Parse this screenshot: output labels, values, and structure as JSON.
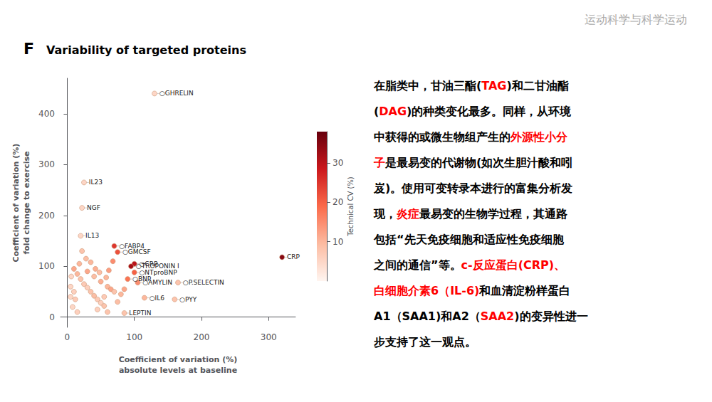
{
  "chart_data": {
    "type": "scatter",
    "title": "Variability of targeted proteins",
    "panel_label": "F",
    "header_text": "运动科学与科学运动",
    "xlabel": "Coefficient of variation (%)\nabsolute levels at baseline",
    "ylabel": "Coefficient of variation (%)\nfold change to exercise",
    "xlim": [
      -10,
      340
    ],
    "ylim": [
      -20,
      470
    ],
    "xticks": [
      0,
      100,
      200,
      300
    ],
    "yticks": [
      0,
      100,
      200,
      300,
      400
    ],
    "grid": false,
    "colorbar_label": "Technical CV (%)",
    "colorbar_range": [
      0,
      38
    ],
    "colorbar_ticks": [
      10,
      20,
      30
    ],
    "x": [
      130,
      25,
      22,
      20,
      70,
      75,
      100,
      95,
      100,
      90,
      105,
      165,
      115,
      160,
      85,
      320,
      10,
      15,
      20,
      25,
      30,
      35,
      40,
      45,
      50,
      55,
      18,
      30,
      40,
      50,
      60,
      65,
      70,
      55,
      45,
      60,
      75,
      80,
      85,
      10,
      12,
      8,
      15,
      22,
      28,
      35,
      42,
      48,
      58,
      62,
      68,
      5,
      5,
      6
    ],
    "y": [
      440,
      265,
      215,
      160,
      140,
      128,
      105,
      100,
      88,
      75,
      68,
      68,
      38,
      35,
      8,
      118,
      95,
      85,
      75,
      65,
      58,
      50,
      42,
      35,
      28,
      22,
      105,
      90,
      80,
      70,
      60,
      55,
      50,
      40,
      15,
      10,
      30,
      45,
      55,
      50,
      35,
      20,
      10,
      130,
      115,
      108,
      95,
      88,
      78,
      92,
      110,
      60,
      40,
      80
    ],
    "technical_cv": [
      5,
      5,
      5,
      5,
      25,
      22,
      30,
      32,
      20,
      18,
      15,
      8,
      10,
      8,
      8,
      35,
      12,
      10,
      8,
      7,
      6,
      8,
      9,
      7,
      6,
      8,
      10,
      12,
      9,
      11,
      10,
      12,
      8,
      7,
      6,
      8,
      9,
      10,
      12,
      6,
      7,
      5,
      6,
      8,
      9,
      10,
      11,
      9,
      10,
      13,
      15,
      5,
      5,
      5
    ],
    "labels": [
      "○GHRELIN",
      "IL23",
      "NGF",
      "IL13",
      "○FABP4",
      "○GMCSF",
      "○CRP",
      "○TROPONIN I",
      "○NTproBNP",
      "○BNP",
      "○AMYLIN",
      "○P.SELECTIN",
      "○IL6",
      "○PYY",
      "LEPTIN",
      "CRP",
      null,
      null,
      null,
      null,
      null,
      null,
      null,
      null,
      null,
      null,
      null,
      null,
      null,
      null,
      null,
      null,
      null,
      null,
      null,
      null,
      null,
      null,
      null,
      null,
      null,
      null,
      null,
      null,
      null,
      null,
      null,
      null,
      null,
      null,
      null,
      null,
      null,
      null
    ],
    "annotations": [
      [
        {
          "text": "在脂类中，甘油三酯(",
          "color": "#000000"
        },
        {
          "text": "TAG",
          "color": "#ff0000"
        },
        {
          "text": ")和二甘油酯",
          "color": "#000000"
        }
      ],
      [
        {
          "text": "(",
          "color": "#000000"
        },
        {
          "text": "DAG",
          "color": "#ff0000"
        },
        {
          "text": ")的种类变化最多。同样，从环境",
          "color": "#000000"
        }
      ],
      [
        {
          "text": "中获得的或微生物组产生的",
          "color": "#000000"
        },
        {
          "text": "外源性小分",
          "color": "#ff0000"
        }
      ],
      [
        {
          "text": "子",
          "color": "#ff0000"
        },
        {
          "text": "是最易变的代谢物(如次生胆汁酸和吲",
          "color": "#000000"
        }
      ],
      [
        {
          "text": "岌)。使用可变转录本进行的富集分析发",
          "color": "#000000"
        }
      ],
      [
        {
          "text": "现，",
          "color": "#000000"
        },
        {
          "text": "炎症",
          "color": "#ff0000"
        },
        {
          "text": "最易变的生物学过程，其通路",
          "color": "#000000"
        }
      ],
      [
        {
          "text": "包括“先天免疫细胞和适应性免疫细胞",
          "color": "#000000"
        }
      ],
      [
        {
          "text": "之间的通信”等。",
          "color": "#000000"
        },
        {
          "text": "c-反应蛋白(CRP)、",
          "color": "#ff0000"
        }
      ],
      [
        {
          "text": "白细胞介素6（IL-6)",
          "color": "#ff0000"
        },
        {
          "text": "和血清淀粉样蛋白",
          "color": "#000000"
        }
      ],
      [
        {
          "text": "A1（SAA1)",
          "color": "#000000"
        },
        {
          "text": "和A2（",
          "color": "#000000"
        },
        {
          "text": "SAA2",
          "color": "#ff0000"
        },
        {
          "text": ")的变异性进一",
          "color": "#000000"
        }
      ],
      [
        {
          "text": "步支持了这一观点。",
          "color": "#000000"
        }
      ]
    ]
  }
}
